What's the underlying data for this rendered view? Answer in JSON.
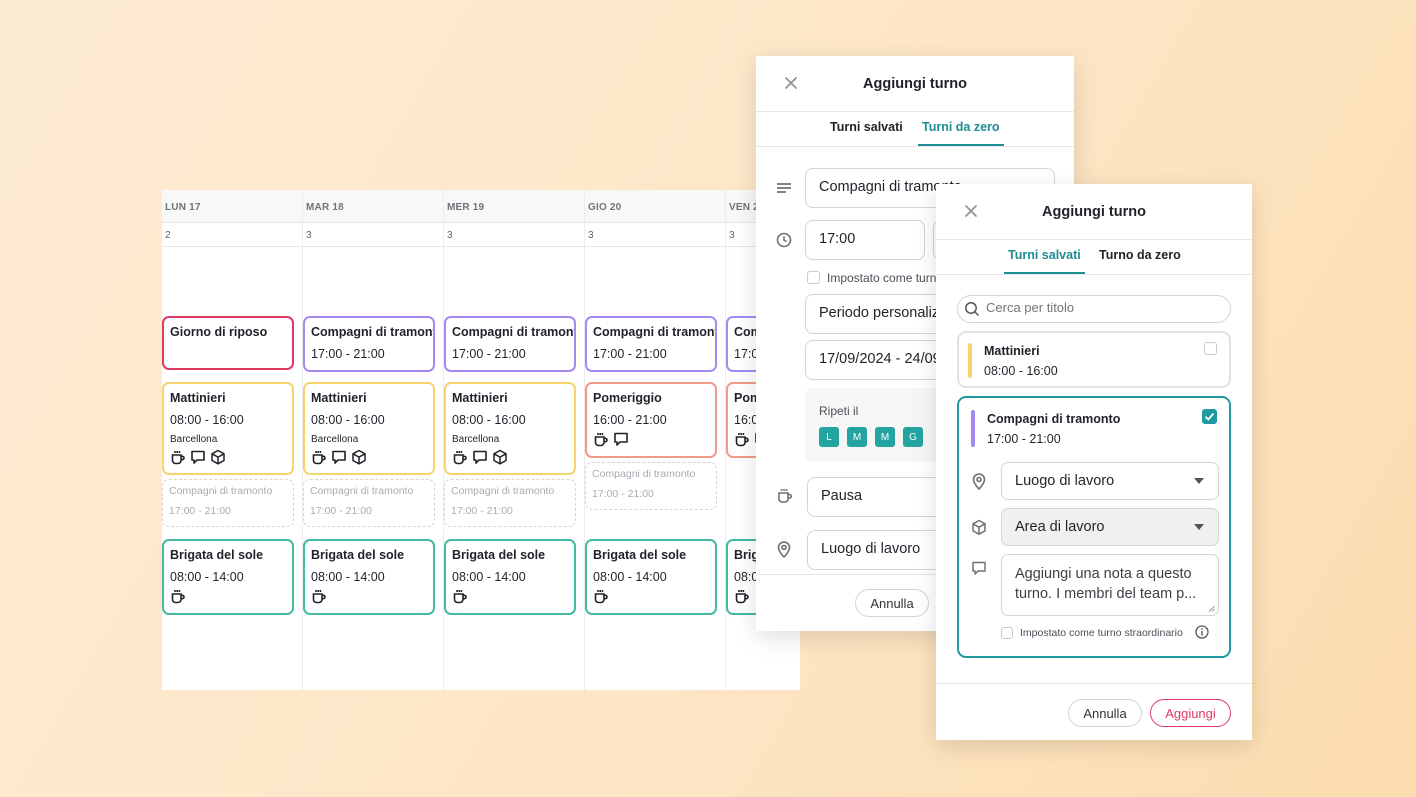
{
  "colors": {
    "teal": "#1e8c92",
    "pink": "#e03a62",
    "purple": "#a48af0",
    "yellow": "#f6d36e",
    "orange": "#f09b87",
    "green": "#45b9a3"
  },
  "calendar": {
    "columns": [
      {
        "label": "LUN 17",
        "count": "2"
      },
      {
        "label": "MAR 18",
        "count": "3"
      },
      {
        "label": "MER 19",
        "count": "3"
      },
      {
        "label": "GIO 20",
        "count": "3"
      },
      {
        "label": "VEN 2",
        "count": "3"
      }
    ],
    "rest_day": "Giorno di riposo",
    "sunset": {
      "title": "Compagni di tramonto",
      "hours": "17:00 - 21:00"
    },
    "morning": {
      "title": "Mattinieri",
      "hours": "08:00 - 16:00",
      "location": "Barcellona"
    },
    "afternoon": {
      "title": "Pomeriggio",
      "hours": "16:00 - 21:00"
    },
    "sun_brigade": {
      "title": "Brigata del sole",
      "hours": "08:00 - 14:00"
    },
    "ghost": {
      "title": "Compagni di tramonto",
      "hours": "17:00 - 21:00"
    },
    "partial": {
      "title": "Com",
      "hours": "17:0",
      "pm_title": "Pom",
      "pm_hours": "16:0",
      "brig_title": "Brig",
      "brig_hours": "08:0"
    }
  },
  "modal_back": {
    "title": "Aggiungi turno",
    "tabs": [
      "Turni salvati",
      "Turni da zero"
    ],
    "active_tab": "Turni da zero",
    "name_value": "Compagni di tramonto",
    "start_time": "17:00",
    "overtime_label": "Impostato come turno straordinario",
    "period_value": "Periodo personalizzato",
    "date_range": "17/09/2024 - 24/09/2024",
    "repeat_label": "Ripeti il",
    "days": [
      "L",
      "M",
      "M",
      "G"
    ],
    "break_value": "Pausa",
    "location_value": "Luogo di lavoro",
    "cancel": "Annulla"
  },
  "modal_front": {
    "title": "Aggiungi turno",
    "tabs": [
      "Turni salvati",
      "Turno da zero"
    ],
    "active_tab": "Turni salvati",
    "search_placeholder": "Cerca per titolo",
    "items": [
      {
        "title": "Mattinieri",
        "hours": "08:00 - 16:00",
        "checked": false
      },
      {
        "title": "Compagni di tramonto",
        "hours": "17:00 - 21:00",
        "checked": true
      }
    ],
    "location_select": "Luogo di lavoro",
    "area_select": "Area di lavoro",
    "note_value": "Aggiungi una nota a questo turno. I membri del team p...",
    "overtime_label": "Impostato come turno straordinario",
    "cancel": "Annulla",
    "add": "Aggiungi"
  }
}
